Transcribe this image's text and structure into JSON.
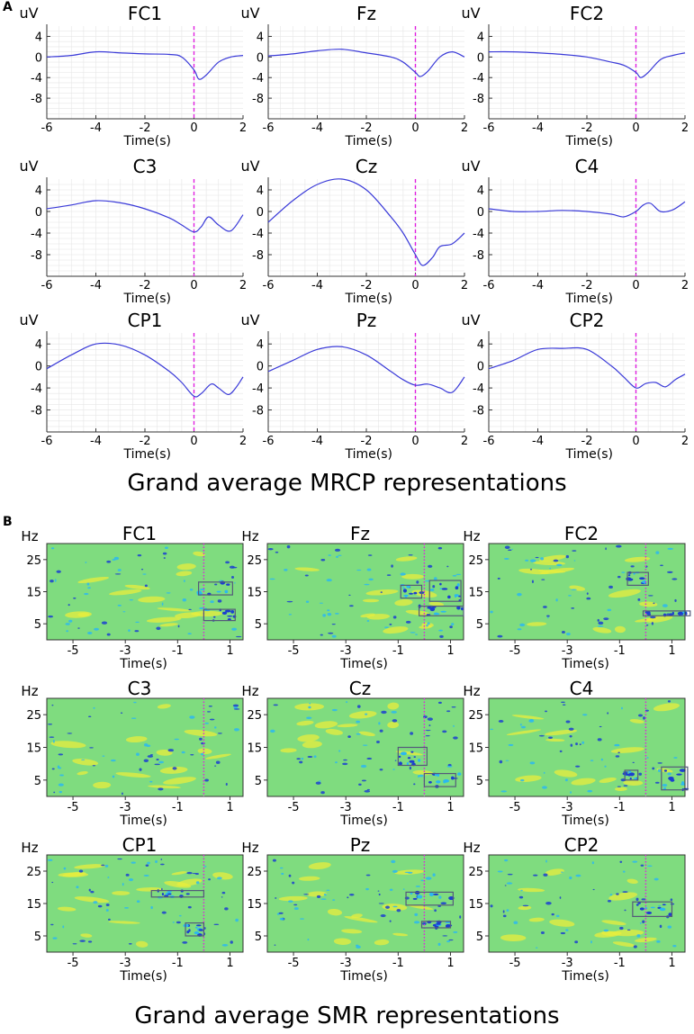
{
  "panel_a": {
    "letter": "A",
    "title": "Grand average MRCP representations",
    "y_unit": "uV",
    "xlabel": "Time(s)",
    "x_ticks": [
      "-6",
      "-4",
      "-2",
      "0",
      "2"
    ],
    "y_ticks": [
      "4",
      "0",
      "-4",
      "-8"
    ]
  },
  "panel_b": {
    "letter": "B",
    "title": "Grand average SMR representations",
    "y_unit": "Hz",
    "xlabel": "Time(s)",
    "x_ticks": [
      "-5",
      "-3",
      "-1",
      "1"
    ],
    "y_ticks": [
      "25",
      "15",
      "5"
    ]
  },
  "colors": {
    "mrcp_line": "#3a3ad8",
    "onset_line": "#e01ee0",
    "heatmap_bg": "#7fdc7f",
    "heatmap_yellow": "#e8ee3c",
    "heatmap_cyan": "#2bb8f0",
    "heatmap_blue": "#1b3fd0",
    "box": "#555a7a"
  },
  "chart_data": [
    {
      "type": "line",
      "title": "Grand average MRCP representations",
      "xlabel": "Time(s)",
      "ylabel": "uV",
      "xlim": [
        -6,
        2
      ],
      "ylim": [
        -12,
        6
      ],
      "onset_marker_x": 0,
      "channels": [
        {
          "name": "FC1",
          "x": [
            -6,
            -5,
            -4,
            -3,
            -2,
            -1,
            -0.5,
            0,
            0.2,
            0.5,
            1,
            1.5,
            2
          ],
          "y": [
            0,
            0.3,
            1,
            0.8,
            0.6,
            0.5,
            0,
            -2.5,
            -4.3,
            -3.5,
            -1,
            0,
            0.3
          ]
        },
        {
          "name": "Fz",
          "x": [
            -6,
            -5,
            -4,
            -3,
            -2,
            -1,
            -0.5,
            0,
            0.2,
            0.5,
            1,
            1.5,
            2
          ],
          "y": [
            0.2,
            0.6,
            1.2,
            1.5,
            0.8,
            0,
            -1,
            -3,
            -3.8,
            -2.8,
            0,
            1,
            0
          ]
        },
        {
          "name": "FC2",
          "x": [
            -6,
            -5,
            -4,
            -3,
            -2,
            -1,
            -0.5,
            0,
            0.2,
            0.5,
            1,
            1.5,
            2
          ],
          "y": [
            1,
            1,
            0.8,
            0.5,
            0,
            -1,
            -1.6,
            -3,
            -4,
            -3,
            -0.5,
            0.3,
            0.8
          ]
        },
        {
          "name": "C3",
          "x": [
            -6,
            -5,
            -4,
            -3,
            -2,
            -1,
            -0.5,
            0,
            0.3,
            0.6,
            1,
            1.5,
            2
          ],
          "y": [
            0.5,
            1.2,
            2,
            1.6,
            0.5,
            -1.2,
            -2.5,
            -3.8,
            -2.8,
            -1,
            -2.5,
            -3.6,
            -0.6
          ]
        },
        {
          "name": "Cz",
          "x": [
            -6,
            -5,
            -4,
            -3,
            -2,
            -1,
            -0.5,
            0,
            0.3,
            0.7,
            1,
            1.5,
            2
          ],
          "y": [
            -2,
            2,
            5,
            6,
            4,
            -1,
            -4,
            -8,
            -10,
            -8.5,
            -6.5,
            -6,
            -4
          ]
        },
        {
          "name": "C4",
          "x": [
            -6,
            -5,
            -4,
            -3,
            -2,
            -1,
            -0.5,
            0,
            0.3,
            0.6,
            1,
            1.5,
            2
          ],
          "y": [
            0.5,
            0,
            0,
            0.2,
            0,
            -0.5,
            -1,
            0,
            1.2,
            1.5,
            0,
            0.3,
            1.8
          ]
        },
        {
          "name": "CP1",
          "x": [
            -6,
            -5,
            -4,
            -3,
            -2,
            -1,
            -0.5,
            0,
            0.3,
            0.7,
            1,
            1.4,
            1.7,
            2
          ],
          "y": [
            -0.5,
            2,
            4,
            3.8,
            2,
            -1,
            -3,
            -5.5,
            -5,
            -3.3,
            -4,
            -5.2,
            -4,
            -2
          ]
        },
        {
          "name": "Pz",
          "x": [
            -6,
            -5,
            -4,
            -3,
            -2,
            -1,
            -0.5,
            0,
            0.5,
            1,
            1.5,
            2
          ],
          "y": [
            -1,
            1,
            3,
            3.5,
            2,
            -1,
            -2.5,
            -3.5,
            -3.3,
            -4,
            -4.8,
            -2
          ]
        },
        {
          "name": "CP2",
          "x": [
            -6,
            -5,
            -4,
            -3,
            -2,
            -1,
            -0.5,
            0,
            0.4,
            0.8,
            1.2,
            1.6,
            2
          ],
          "y": [
            -0.5,
            1,
            3,
            3.2,
            3,
            0,
            -2,
            -4,
            -3.2,
            -3,
            -3.8,
            -2.5,
            -1.5
          ]
        }
      ]
    },
    {
      "type": "heatmap",
      "title": "Grand average SMR representations",
      "xlabel": "Time(s)",
      "ylabel": "Hz",
      "xlim": [
        -6,
        1.5
      ],
      "ylim": [
        0,
        30
      ],
      "onset_marker_x": 0,
      "channels": [
        {
          "name": "FC1",
          "boxes": [
            {
              "t0": -0.2,
              "t1": 1.1,
              "f0": 14,
              "f1": 18
            },
            {
              "t0": 0,
              "t1": 1.2,
              "f0": 6,
              "f1": 9.5
            }
          ]
        },
        {
          "name": "Fz",
          "boxes": [
            {
              "t0": -0.9,
              "t1": -0.1,
              "f0": 13,
              "f1": 17
            },
            {
              "t0": 0.2,
              "t1": 1.4,
              "f0": 12,
              "f1": 18.5
            },
            {
              "t0": -0.2,
              "t1": 1.5,
              "f0": 7.5,
              "f1": 10.5
            }
          ]
        },
        {
          "name": "FC2",
          "boxes": [
            {
              "t0": -0.7,
              "t1": 0.1,
              "f0": 17,
              "f1": 21
            },
            {
              "t0": -0.1,
              "t1": 1.7,
              "f0": 7.5,
              "f1": 9
            }
          ]
        },
        {
          "name": "C3",
          "boxes": []
        },
        {
          "name": "Cz",
          "boxes": [
            {
              "t0": -1,
              "t1": 0.1,
              "f0": 9.5,
              "f1": 15
            },
            {
              "t0": 0,
              "t1": 1.2,
              "f0": 3,
              "f1": 7
            }
          ]
        },
        {
          "name": "C4",
          "boxes": [
            {
              "t0": -0.8,
              "t1": -0.3,
              "f0": 5,
              "f1": 8
            },
            {
              "t0": 0.6,
              "t1": 1.6,
              "f0": 2,
              "f1": 9
            }
          ]
        },
        {
          "name": "CP1",
          "boxes": [
            {
              "t0": -2,
              "t1": 0,
              "f0": 17,
              "f1": 19
            },
            {
              "t0": -0.7,
              "t1": 0,
              "f0": 5,
              "f1": 9
            }
          ]
        },
        {
          "name": "Pz",
          "boxes": [
            {
              "t0": -0.7,
              "t1": 1.1,
              "f0": 14.5,
              "f1": 18.5
            },
            {
              "t0": -0.1,
              "t1": 1,
              "f0": 7.5,
              "f1": 9.5
            }
          ]
        },
        {
          "name": "CP2",
          "boxes": [
            {
              "t0": -0.5,
              "t1": 1,
              "f0": 11,
              "f1": 15.5
            }
          ]
        }
      ]
    }
  ]
}
